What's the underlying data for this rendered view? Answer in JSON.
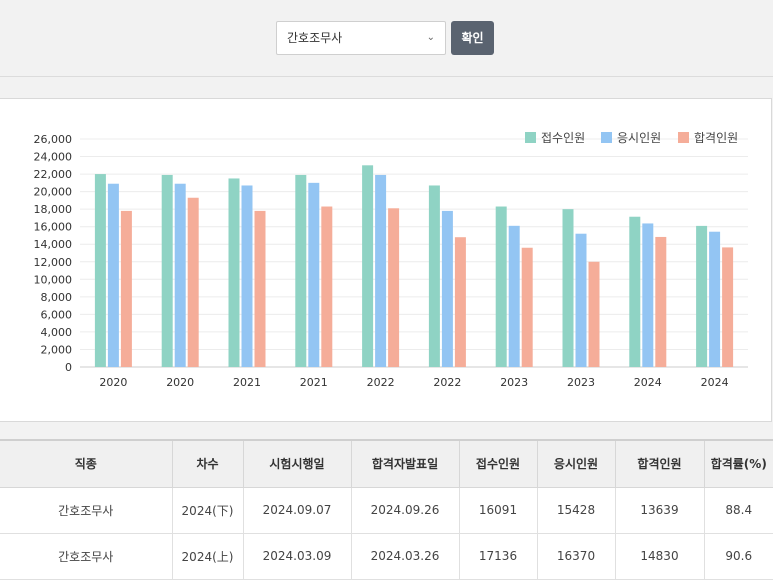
{
  "filter": {
    "selected": "간호조무사",
    "confirm_label": "확인"
  },
  "chart_data": {
    "type": "bar",
    "categories": [
      "2020",
      "2020",
      "2021",
      "2021",
      "2022",
      "2022",
      "2023",
      "2023",
      "2024",
      "2024"
    ],
    "series": [
      {
        "name": "접수인원",
        "color": "#8fd3c4",
        "values": [
          22000,
          21900,
          21500,
          21900,
          23000,
          20700,
          18300,
          18000,
          17136,
          16091
        ]
      },
      {
        "name": "응시인원",
        "color": "#93c5f3",
        "values": [
          20900,
          20900,
          20700,
          21000,
          21900,
          17800,
          16100,
          15200,
          16370,
          15428
        ]
      },
      {
        "name": "합격인원",
        "color": "#f5ad99",
        "values": [
          17800,
          19300,
          17800,
          18300,
          18100,
          14800,
          13600,
          12000,
          14830,
          13639
        ]
      }
    ],
    "ylim": [
      0,
      26000
    ],
    "yticks": [
      "0",
      "2,000",
      "4,000",
      "6,000",
      "8,000",
      "10,000",
      "12,000",
      "14,000",
      "16,000",
      "18,000",
      "20,000",
      "22,000",
      "24,000",
      "26,000"
    ],
    "legend": "top-right",
    "grid": true
  },
  "table": {
    "headers": [
      "직종",
      "차수",
      "시험시행일",
      "합격자발표일",
      "접수인원",
      "응시인원",
      "합격인원",
      "합격률(%)"
    ],
    "rows": [
      [
        "간호조무사",
        "2024(下)",
        "2024.09.07",
        "2024.09.26",
        "16091",
        "15428",
        "13639",
        "88.4"
      ],
      [
        "간호조무사",
        "2024(上)",
        "2024.03.09",
        "2024.03.26",
        "17136",
        "16370",
        "14830",
        "90.6"
      ]
    ]
  }
}
